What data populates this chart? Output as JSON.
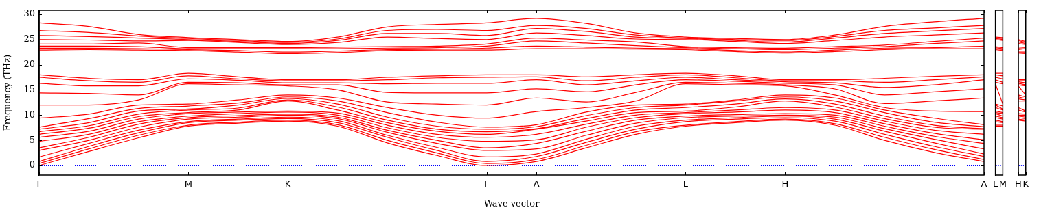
{
  "chart_data": [
    {
      "type": "line",
      "xlabel": "Wave vector",
      "ylabel": "Frequency (THz)",
      "categories": [
        "Γ",
        null,
        null,
        "M",
        null,
        "K",
        null,
        null,
        null,
        "Γ",
        "A",
        null,
        null,
        "L",
        null,
        "H",
        null,
        null,
        null,
        "A"
      ],
      "ylim": [
        -1.9,
        30.8
      ],
      "yticks": [
        0,
        5,
        10,
        15,
        20,
        25,
        30
      ],
      "ref_lines": [
        {
          "axis": "y",
          "value": 0,
          "color": "#0000ff",
          "line_style": "dotted"
        }
      ],
      "series": [
        {
          "color": "#ff0000",
          "values": [
            0,
            2.8,
            5.5,
            7.8,
            8.4,
            8.8,
            7.8,
            4.5,
            2.0,
            0,
            0.8,
            3.5,
            6.2,
            7.8,
            8.5,
            9.0,
            8.0,
            5.0,
            2.6,
            0.8
          ]
        },
        {
          "color": "#ff0000",
          "values": [
            0.4,
            3.3,
            6.0,
            8.0,
            8.6,
            9.0,
            8.1,
            5.0,
            2.5,
            0.4,
            1.2,
            4.0,
            6.7,
            8.0,
            8.7,
            9.2,
            8.3,
            5.6,
            3.2,
            1.2
          ]
        },
        {
          "color": "#ff0000",
          "values": [
            0.8,
            3.8,
            6.5,
            8.5,
            9.0,
            9.3,
            8.5,
            5.6,
            3.0,
            0.8,
            1.8,
            4.6,
            7.2,
            8.7,
            9.2,
            9.5,
            8.8,
            6.2,
            3.8,
            1.8
          ]
        },
        {
          "color": "#ff0000",
          "values": [
            1.7,
            4.4,
            7.0,
            8.7,
            9.2,
            9.6,
            8.9,
            6.0,
            3.6,
            1.7,
            2.3,
            5.2,
            7.8,
            9.0,
            9.5,
            9.8,
            9.2,
            6.8,
            4.5,
            2.3
          ]
        },
        {
          "color": "#ff0000",
          "values": [
            3.0,
            5.0,
            7.6,
            9.2,
            9.6,
            10.0,
            9.3,
            6.6,
            4.4,
            3.0,
            3.3,
            6.0,
            8.4,
            9.5,
            9.8,
            10.0,
            9.6,
            7.3,
            5.2,
            3.3
          ]
        },
        {
          "color": "#ff0000",
          "values": [
            3.5,
            5.6,
            8.2,
            9.5,
            9.9,
            10.2,
            9.6,
            7.0,
            5.0,
            3.5,
            4.4,
            6.8,
            9.0,
            9.8,
            10.1,
            10.3,
            10.0,
            7.8,
            5.8,
            4.4
          ]
        },
        {
          "color": "#ff0000",
          "values": [
            4.8,
            6.2,
            8.7,
            9.8,
            10.3,
            10.6,
            10.0,
            7.5,
            5.6,
            4.8,
            5.1,
            7.6,
            9.5,
            10.3,
            10.6,
            11.0,
            10.5,
            8.3,
            6.4,
            5.1
          ]
        },
        {
          "color": "#ff0000",
          "values": [
            5.6,
            6.8,
            9.2,
            10.3,
            10.6,
            10.8,
            10.4,
            8.0,
            6.2,
            5.6,
            6.2,
            8.2,
            10.0,
            10.5,
            11.0,
            11.5,
            11.0,
            8.8,
            7.0,
            6.2
          ]
        },
        {
          "color": "#ff0000",
          "values": [
            6.2,
            7.4,
            9.7,
            10.5,
            11.0,
            12.8,
            11.0,
            8.5,
            6.8,
            6.2,
            7.2,
            8.8,
            10.5,
            10.8,
            11.6,
            12.8,
            11.6,
            9.3,
            7.6,
            7.2
          ]
        },
        {
          "color": "#ff0000",
          "values": [
            6.7,
            7.9,
            10.2,
            11.0,
            11.4,
            13.0,
            11.6,
            9.0,
            7.2,
            6.7,
            7.3,
            9.3,
            11.0,
            11.5,
            12.2,
            13.2,
            12.2,
            9.8,
            8.0,
            7.3
          ]
        },
        {
          "color": "#ff0000",
          "values": [
            7.2,
            8.5,
            10.8,
            11.2,
            12.0,
            13.3,
            12.2,
            9.6,
            7.8,
            7.2,
            7.7,
            9.9,
            11.5,
            12.0,
            12.8,
            13.6,
            12.8,
            10.5,
            8.6,
            7.7
          ]
        },
        {
          "color": "#ff0000",
          "values": [
            7.6,
            9.3,
            11.3,
            11.8,
            12.4,
            13.6,
            12.8,
            10.5,
            8.6,
            7.6,
            8.1,
            10.6,
            12.0,
            12.2,
            13.0,
            14.0,
            13.4,
            11.0,
            9.4,
            8.1
          ]
        },
        {
          "color": "#ff0000",
          "values": [
            9.4,
            10.2,
            12.0,
            12.2,
            13.0,
            14.0,
            13.4,
            11.5,
            10.0,
            9.4,
            10.7,
            11.5,
            12.8,
            16.2,
            16.0,
            15.8,
            14.0,
            11.5,
            10.8,
            10.7
          ]
        },
        {
          "color": "#ff0000",
          "values": [
            12.0,
            12.0,
            13.0,
            16.2,
            16.0,
            15.8,
            15.0,
            12.6,
            12.2,
            12.0,
            13.4,
            12.6,
            14.5,
            16.5,
            16.3,
            16.0,
            15.2,
            12.3,
            12.8,
            13.4
          ]
        },
        {
          "color": "#ff0000",
          "values": [
            14.4,
            14.3,
            14.0,
            16.5,
            16.4,
            16.0,
            16.0,
            14.5,
            14.4,
            14.4,
            15.2,
            14.6,
            16.0,
            17.0,
            16.7,
            16.3,
            16.0,
            14.0,
            14.6,
            15.2
          ]
        },
        {
          "color": "#ff0000",
          "values": [
            16.3,
            15.8,
            15.8,
            17.2,
            16.9,
            16.4,
            16.4,
            16.2,
            16.3,
            16.3,
            17.0,
            16.0,
            16.8,
            17.5,
            17.0,
            16.6,
            16.4,
            15.5,
            16.0,
            17.0
          ]
        },
        {
          "color": "#ff0000",
          "values": [
            17.5,
            16.8,
            16.5,
            17.8,
            17.2,
            16.8,
            16.8,
            17.0,
            17.4,
            17.5,
            17.6,
            16.8,
            17.5,
            18.0,
            17.4,
            16.8,
            16.8,
            16.5,
            17.0,
            17.6
          ]
        },
        {
          "color": "#ff0000",
          "values": [
            18.0,
            17.3,
            17.0,
            18.3,
            17.6,
            17.0,
            17.0,
            17.5,
            17.8,
            18.0,
            18.0,
            17.6,
            18.0,
            18.3,
            17.8,
            17.0,
            17.0,
            17.3,
            17.7,
            18.0
          ]
        },
        {
          "color": "#ff0000",
          "values": [
            22.9,
            23.0,
            22.9,
            22.8,
            22.5,
            22.2,
            22.4,
            22.8,
            22.9,
            22.9,
            23.2,
            23.2,
            23.1,
            23.0,
            22.6,
            22.3,
            22.6,
            23.0,
            23.2,
            23.2
          ]
        },
        {
          "color": "#ff0000",
          "values": [
            23.3,
            23.3,
            23.2,
            23.0,
            22.8,
            22.5,
            22.7,
            23.0,
            23.1,
            23.3,
            23.7,
            23.5,
            23.3,
            23.2,
            22.8,
            22.5,
            22.9,
            23.3,
            23.4,
            23.7
          ]
        },
        {
          "color": "#ff0000",
          "values": [
            23.7,
            23.7,
            23.6,
            23.2,
            23.2,
            23.2,
            23.2,
            23.3,
            23.4,
            23.7,
            24.7,
            24.3,
            23.8,
            23.4,
            23.2,
            23.0,
            23.3,
            23.6,
            24.2,
            24.7
          ]
        },
        {
          "color": "#ff0000",
          "values": [
            24.1,
            24.1,
            24.3,
            23.4,
            23.4,
            23.4,
            23.5,
            23.6,
            23.7,
            24.1,
            25.3,
            24.9,
            24.5,
            23.6,
            23.4,
            23.3,
            23.6,
            23.9,
            24.6,
            25.3
          ]
        },
        {
          "color": "#ff0000",
          "values": [
            25.0,
            24.9,
            24.7,
            24.8,
            24.4,
            24.0,
            24.4,
            25.5,
            25.2,
            25.0,
            26.3,
            25.8,
            25.1,
            25.0,
            24.6,
            24.2,
            24.8,
            25.5,
            25.9,
            26.3
          ]
        },
        {
          "color": "#ff0000",
          "values": [
            25.8,
            25.6,
            25.3,
            25.0,
            24.6,
            24.2,
            24.8,
            26.2,
            26.2,
            25.8,
            27.2,
            26.6,
            25.5,
            25.2,
            24.8,
            24.5,
            25.3,
            26.2,
            26.7,
            27.2
          ]
        },
        {
          "color": "#ff0000",
          "values": [
            26.8,
            26.4,
            25.7,
            25.2,
            24.8,
            24.4,
            25.1,
            26.8,
            27.0,
            26.8,
            27.8,
            27.2,
            25.9,
            25.3,
            25.0,
            24.8,
            25.6,
            26.8,
            27.3,
            27.8
          ]
        },
        {
          "color": "#ff0000",
          "values": [
            28.3,
            27.6,
            26.0,
            25.4,
            25.0,
            24.6,
            25.5,
            27.5,
            28.0,
            28.3,
            29.2,
            28.2,
            26.3,
            25.5,
            25.2,
            25.0,
            25.9,
            27.6,
            28.5,
            29.2
          ]
        }
      ]
    },
    {
      "type": "line",
      "categories": [
        "L",
        "M"
      ],
      "ylim": [
        -1.9,
        30.8
      ],
      "tick_labels": "x",
      "yticks": [
        0,
        5,
        10,
        15,
        20,
        25,
        30
      ],
      "ref_lines": [
        {
          "axis": "y",
          "value": 0,
          "color": "#0000ff",
          "line_style": "dotted"
        }
      ],
      "series": [
        {
          "color": "#ff0000",
          "values": [
            7.8,
            7.8
          ]
        },
        {
          "color": "#ff0000",
          "values": [
            8.0,
            8.0
          ]
        },
        {
          "color": "#ff0000",
          "values": [
            8.7,
            8.5
          ]
        },
        {
          "color": "#ff0000",
          "values": [
            9.0,
            8.7
          ]
        },
        {
          "color": "#ff0000",
          "values": [
            9.5,
            9.2
          ]
        },
        {
          "color": "#ff0000",
          "values": [
            9.8,
            9.5
          ]
        },
        {
          "color": "#ff0000",
          "values": [
            10.3,
            9.8
          ]
        },
        {
          "color": "#ff0000",
          "values": [
            10.5,
            10.3
          ]
        },
        {
          "color": "#ff0000",
          "values": [
            10.8,
            10.5
          ]
        },
        {
          "color": "#ff0000",
          "values": [
            11.5,
            11.0
          ]
        },
        {
          "color": "#ff0000",
          "values": [
            12.0,
            11.2
          ]
        },
        {
          "color": "#ff0000",
          "values": [
            12.2,
            11.8
          ]
        },
        {
          "color": "#ff0000",
          "values": [
            16.2,
            12.2
          ]
        },
        {
          "color": "#ff0000",
          "values": [
            16.5,
            16.2
          ]
        },
        {
          "color": "#ff0000",
          "values": [
            17.0,
            16.5
          ]
        },
        {
          "color": "#ff0000",
          "values": [
            17.5,
            17.2
          ]
        },
        {
          "color": "#ff0000",
          "values": [
            18.0,
            17.8
          ]
        },
        {
          "color": "#ff0000",
          "values": [
            18.3,
            18.3
          ]
        },
        {
          "color": "#ff0000",
          "values": [
            23.0,
            22.8
          ]
        },
        {
          "color": "#ff0000",
          "values": [
            23.2,
            23.0
          ]
        },
        {
          "color": "#ff0000",
          "values": [
            23.4,
            23.2
          ]
        },
        {
          "color": "#ff0000",
          "values": [
            23.6,
            23.4
          ]
        },
        {
          "color": "#ff0000",
          "values": [
            25.0,
            24.8
          ]
        },
        {
          "color": "#ff0000",
          "values": [
            25.2,
            25.0
          ]
        },
        {
          "color": "#ff0000",
          "values": [
            25.3,
            25.2
          ]
        },
        {
          "color": "#ff0000",
          "values": [
            25.5,
            25.4
          ]
        }
      ]
    },
    {
      "type": "line",
      "categories": [
        "H",
        "K"
      ],
      "ylim": [
        -1.9,
        30.8
      ],
      "tick_labels": "x",
      "yticks": [
        0,
        5,
        10,
        15,
        20,
        25,
        30
      ],
      "ref_lines": [
        {
          "axis": "y",
          "value": 0,
          "color": "#0000ff",
          "line_style": "dotted"
        }
      ],
      "series": [
        {
          "color": "#ff0000",
          "values": [
            9.0,
            8.8
          ]
        },
        {
          "color": "#ff0000",
          "values": [
            9.2,
            9.0
          ]
        },
        {
          "color": "#ff0000",
          "values": [
            9.5,
            9.3
          ]
        },
        {
          "color": "#ff0000",
          "values": [
            9.8,
            9.6
          ]
        },
        {
          "color": "#ff0000",
          "values": [
            10.0,
            10.0
          ]
        },
        {
          "color": "#ff0000",
          "values": [
            10.3,
            10.2
          ]
        },
        {
          "color": "#ff0000",
          "values": [
            11.0,
            10.6
          ]
        },
        {
          "color": "#ff0000",
          "values": [
            11.5,
            10.8
          ]
        },
        {
          "color": "#ff0000",
          "values": [
            12.8,
            12.8
          ]
        },
        {
          "color": "#ff0000",
          "values": [
            13.2,
            13.0
          ]
        },
        {
          "color": "#ff0000",
          "values": [
            13.6,
            13.3
          ]
        },
        {
          "color": "#ff0000",
          "values": [
            14.0,
            13.6
          ]
        },
        {
          "color": "#ff0000",
          "values": [
            15.8,
            14.0
          ]
        },
        {
          "color": "#ff0000",
          "values": [
            16.0,
            15.8
          ]
        },
        {
          "color": "#ff0000",
          "values": [
            16.3,
            16.0
          ]
        },
        {
          "color": "#ff0000",
          "values": [
            16.6,
            16.4
          ]
        },
        {
          "color": "#ff0000",
          "values": [
            16.8,
            16.8
          ]
        },
        {
          "color": "#ff0000",
          "values": [
            17.0,
            17.0
          ]
        },
        {
          "color": "#ff0000",
          "values": [
            22.3,
            22.2
          ]
        },
        {
          "color": "#ff0000",
          "values": [
            22.5,
            22.5
          ]
        },
        {
          "color": "#ff0000",
          "values": [
            23.0,
            23.2
          ]
        },
        {
          "color": "#ff0000",
          "values": [
            23.3,
            23.4
          ]
        },
        {
          "color": "#ff0000",
          "values": [
            24.2,
            24.0
          ]
        },
        {
          "color": "#ff0000",
          "values": [
            24.5,
            24.2
          ]
        },
        {
          "color": "#ff0000",
          "values": [
            24.8,
            24.4
          ]
        },
        {
          "color": "#ff0000",
          "values": [
            25.0,
            24.6
          ]
        }
      ]
    }
  ]
}
